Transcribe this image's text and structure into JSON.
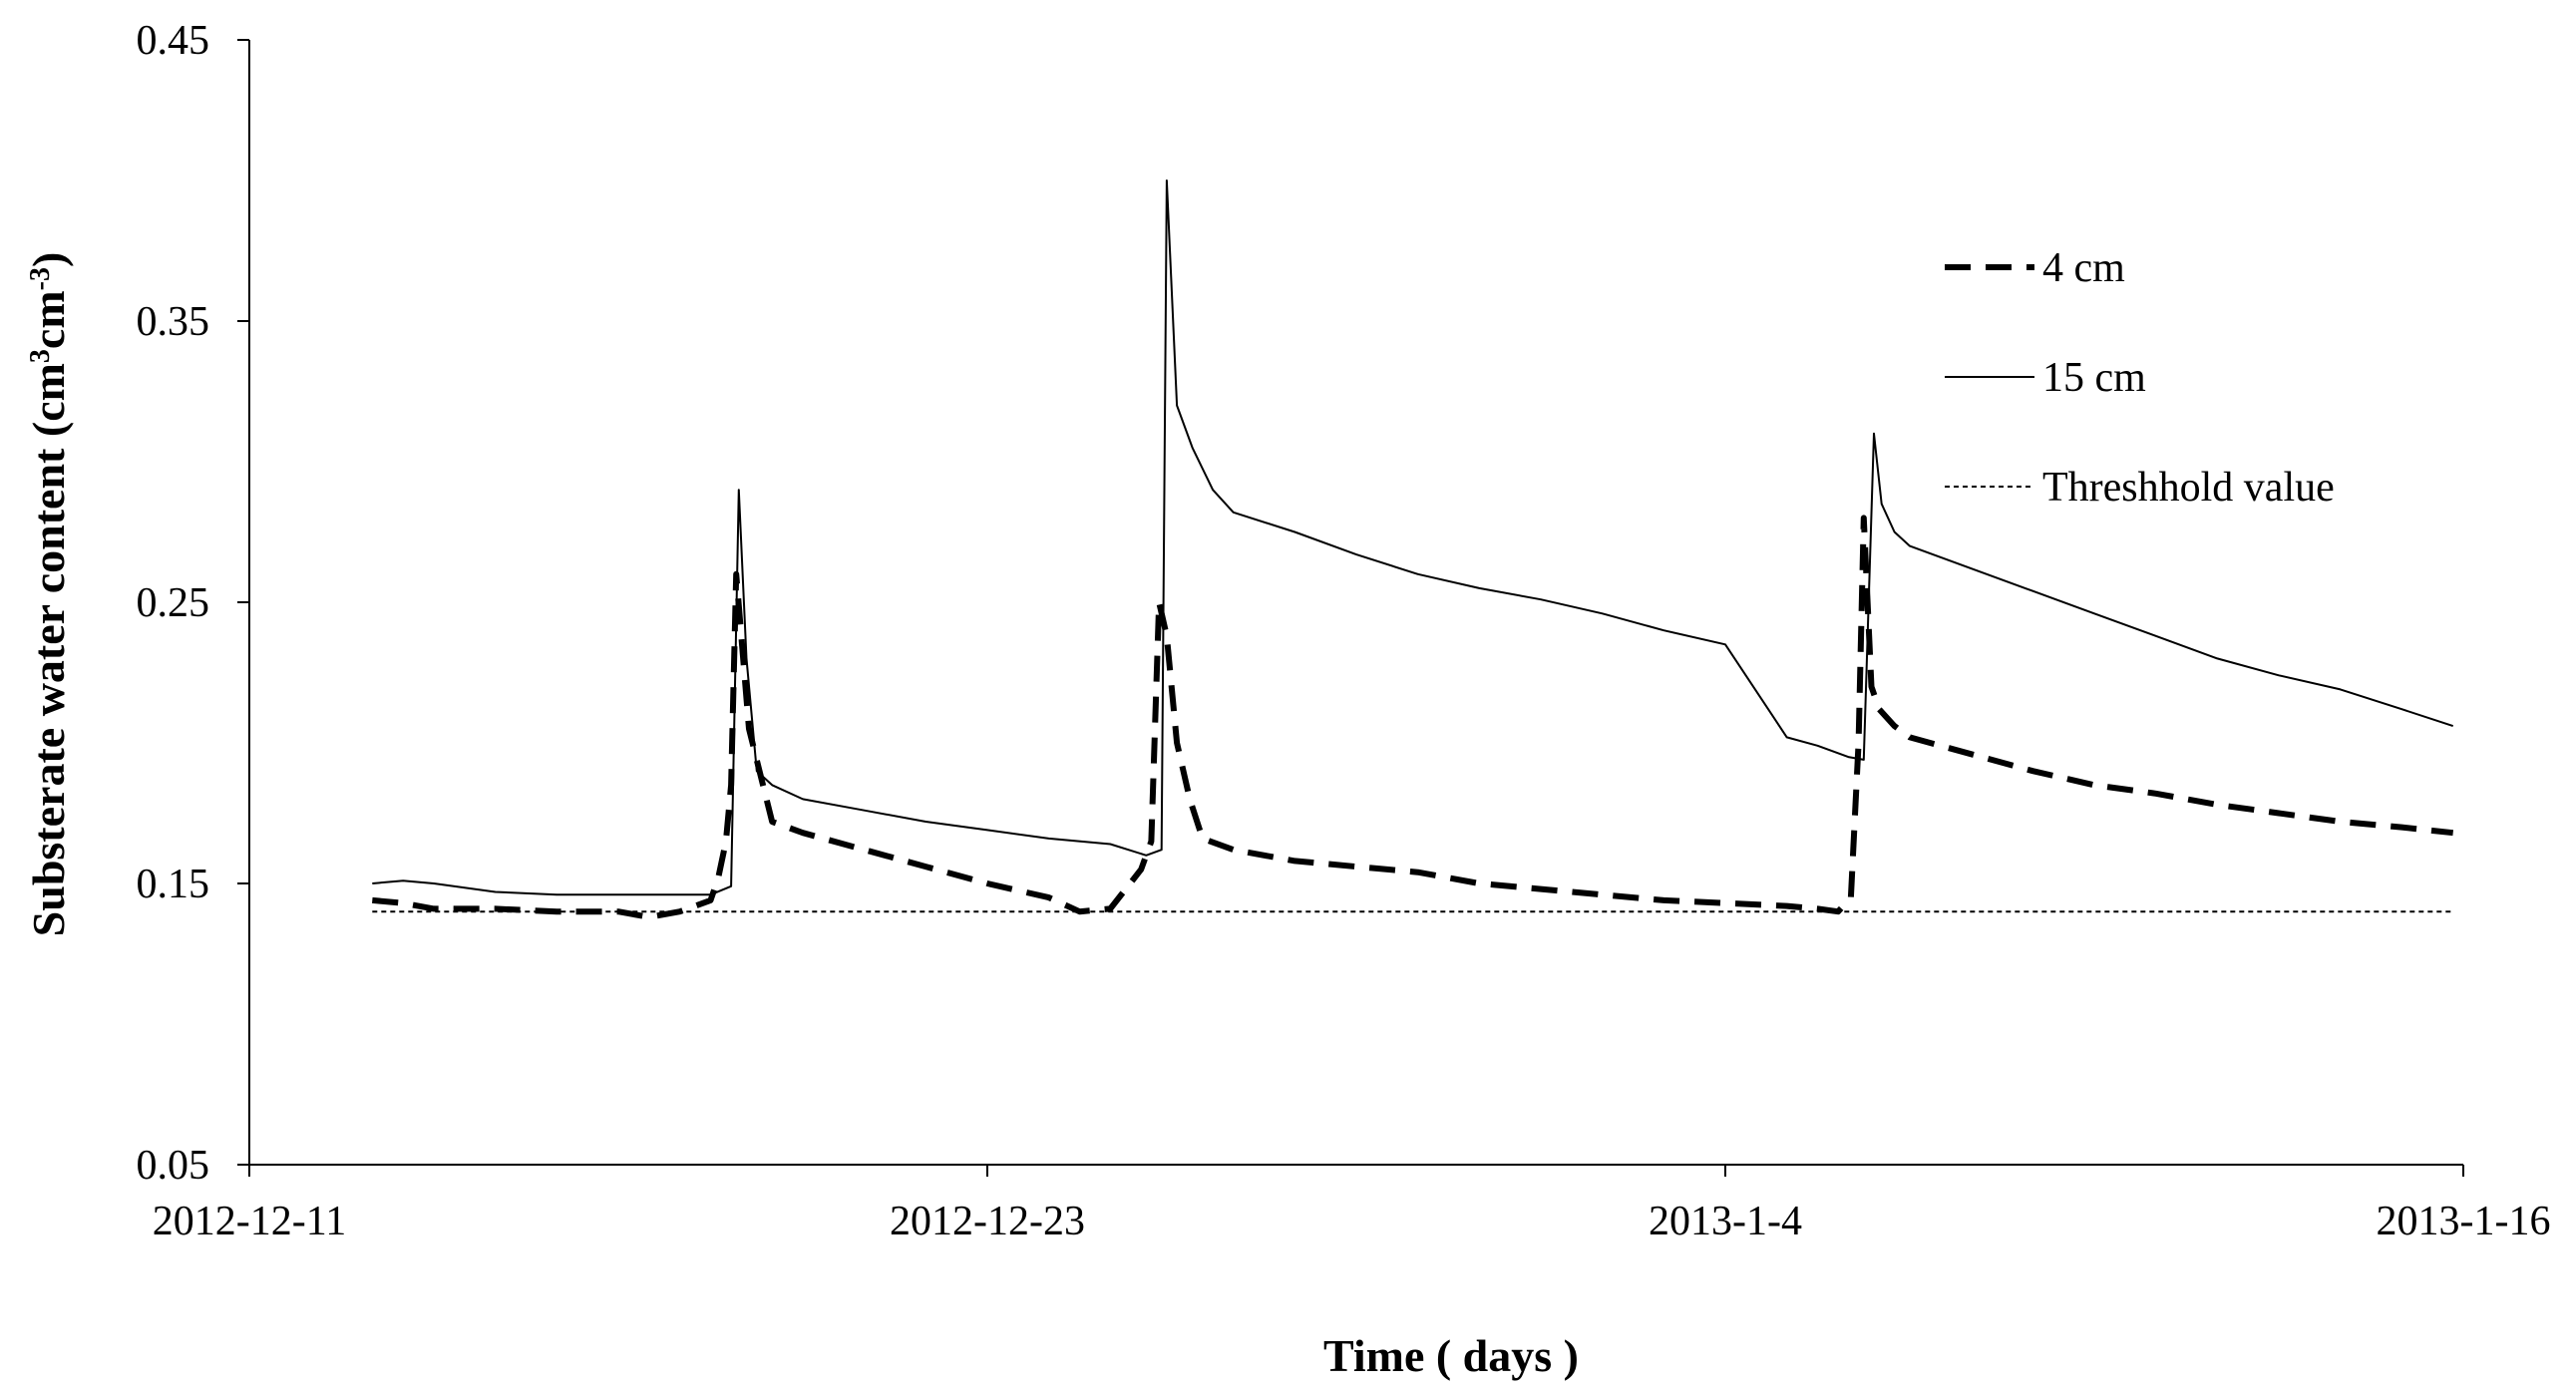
{
  "chart_data": {
    "type": "line",
    "xlabel": "Time ( days )",
    "ylabel": {
      "main": "Substerate water content (cm",
      "sup1": "3",
      "mid": "cm",
      "sup2": "-3",
      "end": ")"
    },
    "xlim": [
      "2012-12-11",
      "2013-01-16"
    ],
    "ylim": [
      0.05,
      0.45
    ],
    "y_ticks": [
      "0.05",
      "0.15",
      "0.25",
      "0.35",
      "0.45"
    ],
    "y_tick_values": [
      0.05,
      0.15,
      0.25,
      0.35,
      0.45
    ],
    "x_ticks": [
      "2012-12-11",
      "2012-12-23",
      "2013-1-4",
      "2013-1-16"
    ],
    "x_tick_dates": [
      "2012-12-11",
      "2012-12-23",
      "2013-01-04",
      "2013-01-16"
    ],
    "grid": false,
    "legend_position": "top-right",
    "series": [
      {
        "name": "4 cm",
        "style": "dashed-bold",
        "color": "#000000",
        "x": [
          "2012-12-13 00:00",
          "2012-12-13 12:00",
          "2012-12-14 00:00",
          "2012-12-15 00:00",
          "2012-12-16 00:00",
          "2012-12-17 00:00",
          "2012-12-17 12:00",
          "2012-12-18 00:00",
          "2012-12-18 12:00",
          "2012-12-18 15:00",
          "2012-12-18 18:00",
          "2012-12-18 20:00",
          "2012-12-18 22:00",
          "2012-12-19 03:00",
          "2012-12-19 12:00",
          "2012-12-20 00:00",
          "2012-12-21 00:00",
          "2012-12-22 00:00",
          "2012-12-23 00:00",
          "2012-12-24 00:00",
          "2012-12-24 12:00",
          "2012-12-25 00:00",
          "2012-12-25 12:00",
          "2012-12-25 16:00",
          "2012-12-25 19:00",
          "2012-12-25 22:00",
          "2012-12-26 02:00",
          "2012-12-26 07:00",
          "2012-12-26 12:00",
          "2012-12-27 00:00",
          "2012-12-28 00:00",
          "2012-12-29 00:00",
          "2012-12-30 00:00",
          "2012-12-31 00:00",
          "2013-01-01 00:00",
          "2013-01-02 00:00",
          "2013-01-03 00:00",
          "2013-01-04 00:00",
          "2013-01-05 00:00",
          "2013-01-05 12:00",
          "2013-01-05 20:00",
          "2013-01-06 01:00",
          "2013-01-06 04:00",
          "2013-01-06 06:00",
          "2013-01-06 09:00",
          "2013-01-06 12:00",
          "2013-01-06 18:00",
          "2013-01-07 00:00",
          "2013-01-08 00:00",
          "2013-01-09 00:00",
          "2013-01-10 00:00",
          "2013-01-11 00:00",
          "2013-01-12 00:00",
          "2013-01-13 00:00",
          "2013-01-14 00:00",
          "2013-01-15 00:00",
          "2013-01-15 20:00"
        ],
        "values": [
          0.144,
          0.143,
          0.141,
          0.141,
          0.14,
          0.14,
          0.138,
          0.14,
          0.144,
          0.152,
          0.165,
          0.185,
          0.26,
          0.205,
          0.172,
          0.168,
          0.162,
          0.156,
          0.15,
          0.145,
          0.14,
          0.141,
          0.155,
          0.165,
          0.25,
          0.238,
          0.2,
          0.18,
          0.166,
          0.162,
          0.158,
          0.156,
          0.154,
          0.15,
          0.148,
          0.146,
          0.144,
          0.143,
          0.142,
          0.141,
          0.14,
          0.145,
          0.2,
          0.28,
          0.22,
          0.212,
          0.206,
          0.202,
          0.196,
          0.19,
          0.185,
          0.182,
          0.178,
          0.175,
          0.172,
          0.17,
          0.168
        ]
      },
      {
        "name": "15 cm",
        "style": "solid-thin",
        "color": "#000000",
        "x": [
          "2012-12-13 00:00",
          "2012-12-13 12:00",
          "2012-12-14 00:00",
          "2012-12-15 00:00",
          "2012-12-16 00:00",
          "2012-12-17 00:00",
          "2012-12-18 00:00",
          "2012-12-18 12:00",
          "2012-12-18 20:00",
          "2012-12-18 23:00",
          "2012-12-19 02:00",
          "2012-12-19 06:00",
          "2012-12-19 12:00",
          "2012-12-20 00:00",
          "2012-12-21 00:00",
          "2012-12-22 00:00",
          "2012-12-23 00:00",
          "2012-12-24 00:00",
          "2012-12-25 00:00",
          "2012-12-25 14:00",
          "2012-12-25 20:00",
          "2012-12-25 22:00",
          "2012-12-26 02:00",
          "2012-12-26 08:00",
          "2012-12-26 16:00",
          "2012-12-27 00:00",
          "2012-12-28 00:00",
          "2012-12-29 00:00",
          "2012-12-30 00:00",
          "2012-12-31 00:00",
          "2013-01-01 00:00",
          "2013-01-02 00:00",
          "2013-01-03 00:00",
          "2013-01-04 00:00",
          "2013-01-05 00:00",
          "2013-01-05 12:00",
          "2013-01-06 00:00",
          "2013-01-06 06:00",
          "2013-01-06 10:00",
          "2013-01-06 13:00",
          "2013-01-06 18:00",
          "2013-01-07 00:00",
          "2013-01-08 00:00",
          "2013-01-09 00:00",
          "2013-01-10 00:00",
          "2013-01-11 00:00",
          "2013-01-12 00:00",
          "2013-01-13 00:00",
          "2013-01-14 00:00",
          "2013-01-15 00:00",
          "2013-01-15 20:00"
        ],
        "values": [
          0.15,
          0.151,
          0.15,
          0.147,
          0.146,
          0.146,
          0.146,
          0.146,
          0.149,
          0.29,
          0.23,
          0.19,
          0.185,
          0.18,
          0.176,
          0.172,
          0.169,
          0.166,
          0.164,
          0.16,
          0.162,
          0.4,
          0.32,
          0.305,
          0.29,
          0.282,
          0.275,
          0.267,
          0.26,
          0.255,
          0.251,
          0.246,
          0.24,
          0.235,
          0.202,
          0.199,
          0.195,
          0.194,
          0.31,
          0.285,
          0.275,
          0.27,
          0.262,
          0.254,
          0.246,
          0.238,
          0.23,
          0.224,
          0.219,
          0.212,
          0.206
        ]
      },
      {
        "name": "Threshhold value",
        "style": "dotted-thin",
        "color": "#000000",
        "x": [
          "2012-12-13 00:00",
          "2013-01-15 20:00"
        ],
        "values": [
          0.14,
          0.14
        ]
      }
    ]
  }
}
